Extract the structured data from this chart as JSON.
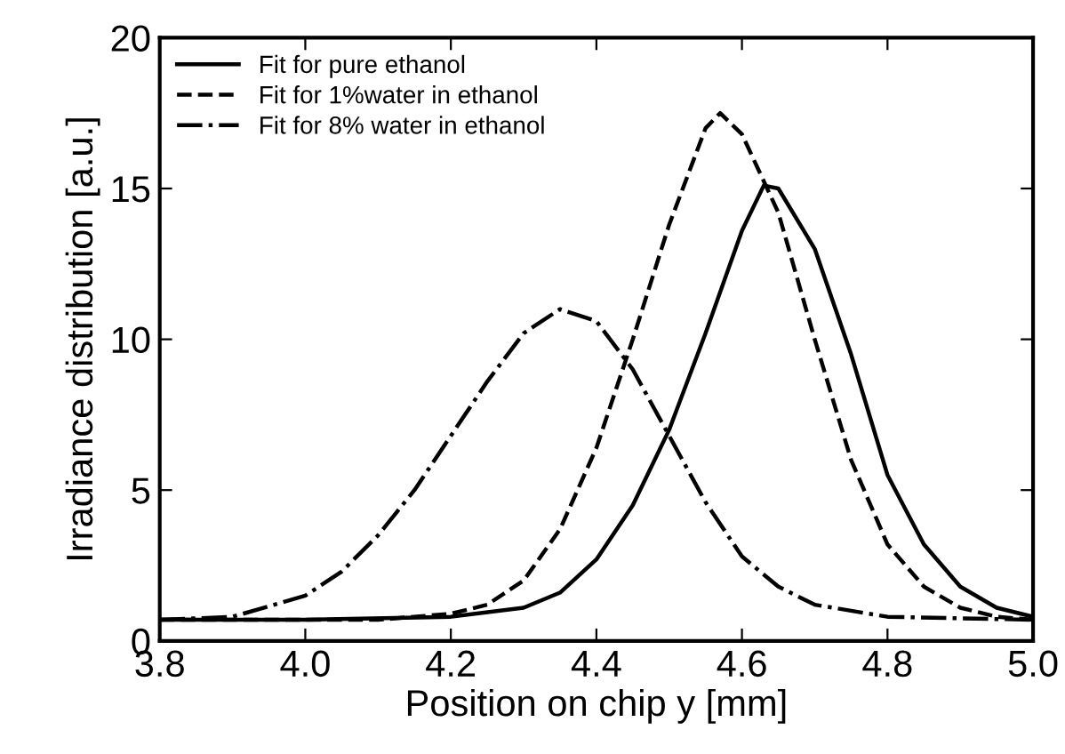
{
  "chart_data": {
    "type": "line",
    "xlabel": "Position on chip y [mm]",
    "ylabel": "Irradiance distribution [a.u.]",
    "xlim": [
      3.8,
      5.0
    ],
    "ylim": [
      0,
      20
    ],
    "xticks": [
      3.8,
      {
        "value": 4.0,
        "label": "4.0"
      },
      4.2,
      4.4,
      4.6,
      4.8,
      {
        "value": 5.0,
        "label": "5.0"
      }
    ],
    "yticks": [
      0,
      5,
      10,
      15,
      20
    ],
    "grid": false,
    "legend": "top left",
    "marker": "none",
    "series": [
      {
        "name": "Fit for pure ethanol",
        "color": "#000000",
        "line_style": "solid",
        "x": [
          3.8,
          4.0,
          4.2,
          4.3,
          4.35,
          4.4,
          4.45,
          4.5,
          4.55,
          4.6,
          4.63,
          4.65,
          4.7,
          4.75,
          4.8,
          4.85,
          4.9,
          4.95,
          5.0
        ],
        "values": [
          0.7,
          0.7,
          0.8,
          1.1,
          1.6,
          2.7,
          4.5,
          7.0,
          10.2,
          13.6,
          15.1,
          15.0,
          13.0,
          9.5,
          5.5,
          3.2,
          1.8,
          1.1,
          0.8
        ]
      },
      {
        "name": "Fit for 1%water in ethanol",
        "color": "#000000",
        "line_style": "dashed",
        "x": [
          3.8,
          4.1,
          4.2,
          4.25,
          4.3,
          4.35,
          4.4,
          4.45,
          4.5,
          4.55,
          4.57,
          4.6,
          4.65,
          4.7,
          4.75,
          4.8,
          4.85,
          4.9,
          4.95,
          5.0
        ],
        "values": [
          0.7,
          0.7,
          0.9,
          1.2,
          2.0,
          3.7,
          6.4,
          10.0,
          13.8,
          17.0,
          17.5,
          16.8,
          14.2,
          10.0,
          6.0,
          3.2,
          1.8,
          1.1,
          0.8,
          0.7
        ]
      },
      {
        "name": "Fit for 8% water in ethanol",
        "color": "#000000",
        "line_style": "dashdot",
        "x": [
          3.8,
          3.9,
          4.0,
          4.05,
          4.1,
          4.15,
          4.2,
          4.25,
          4.3,
          4.35,
          4.4,
          4.45,
          4.5,
          4.55,
          4.6,
          4.65,
          4.7,
          4.8,
          5.0
        ],
        "values": [
          0.7,
          0.8,
          1.5,
          2.3,
          3.5,
          5.0,
          6.8,
          8.6,
          10.2,
          11.0,
          10.6,
          9.0,
          6.8,
          4.6,
          2.8,
          1.8,
          1.2,
          0.8,
          0.7
        ]
      }
    ]
  }
}
